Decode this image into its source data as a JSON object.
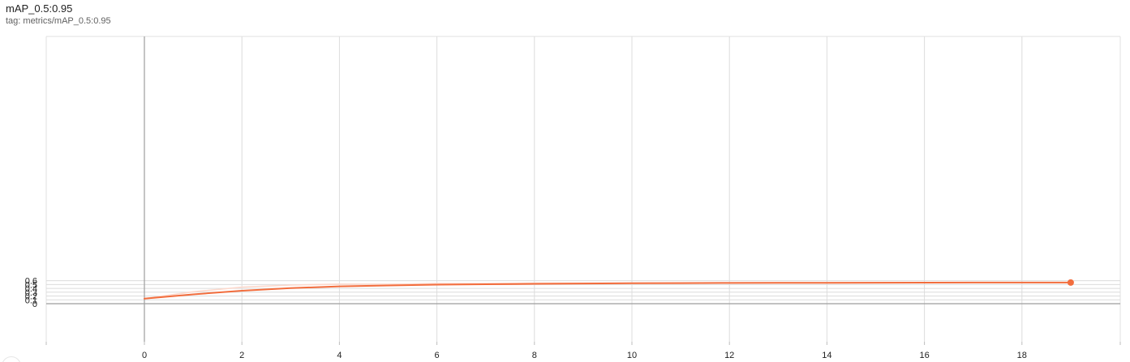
{
  "header": {
    "title": "mAP_0.5:0.95",
    "tag": "tag: metrics/mAP_0.5:0.95"
  },
  "chart_data": {
    "type": "line",
    "title": "mAP_0.5:0.95",
    "xlabel": "",
    "ylabel": "",
    "xlim": [
      -2,
      20.1
    ],
    "ylim": [
      -0.1,
      0.7
    ],
    "x_ticks": [
      0,
      2,
      4,
      6,
      8,
      10,
      12,
      14,
      16,
      18
    ],
    "y_ticks": [
      0,
      0.1,
      0.2,
      0.3,
      0.4,
      0.5,
      0.6
    ],
    "grid": true,
    "legend": "none",
    "series": [
      {
        "role": "raw",
        "color": "#fcd9cd",
        "x": [
          0,
          1,
          2,
          3,
          4,
          5,
          6,
          7,
          8,
          9,
          10,
          11,
          12,
          13,
          14,
          15,
          16,
          17,
          18,
          19
        ],
        "values": [
          0.133,
          0.31,
          0.432,
          0.487,
          0.511,
          0.51,
          0.526,
          0.527,
          0.536,
          0.54,
          0.541,
          0.545,
          0.546,
          0.547,
          0.549,
          0.551,
          0.552,
          0.553,
          0.553,
          0.553
        ]
      },
      {
        "role": "smoothed",
        "color": "#f26d3d",
        "x": [
          0,
          1,
          2,
          3,
          4,
          5,
          6,
          7,
          8,
          9,
          10,
          11,
          12,
          13,
          14,
          15,
          16,
          17,
          18,
          19
        ],
        "values": [
          0.133,
          0.243,
          0.339,
          0.406,
          0.452,
          0.476,
          0.496,
          0.508,
          0.519,
          0.527,
          0.532,
          0.537,
          0.541,
          0.544,
          0.546,
          0.548,
          0.55,
          0.552,
          0.552,
          0.552
        ]
      }
    ]
  }
}
